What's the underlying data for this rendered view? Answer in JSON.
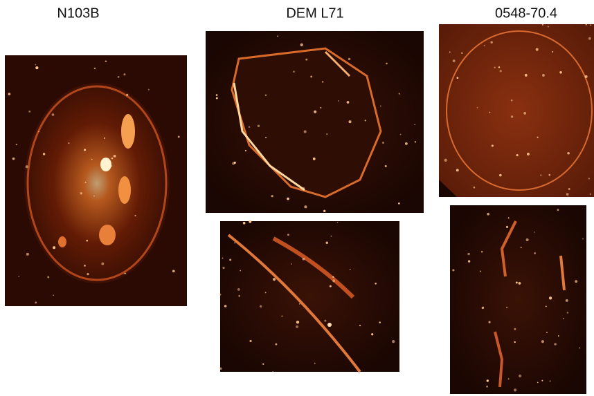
{
  "panels": [
    {
      "label": "N103B"
    },
    {
      "label": "DEM L71"
    },
    {
      "label": "0548-70.4"
    }
  ]
}
